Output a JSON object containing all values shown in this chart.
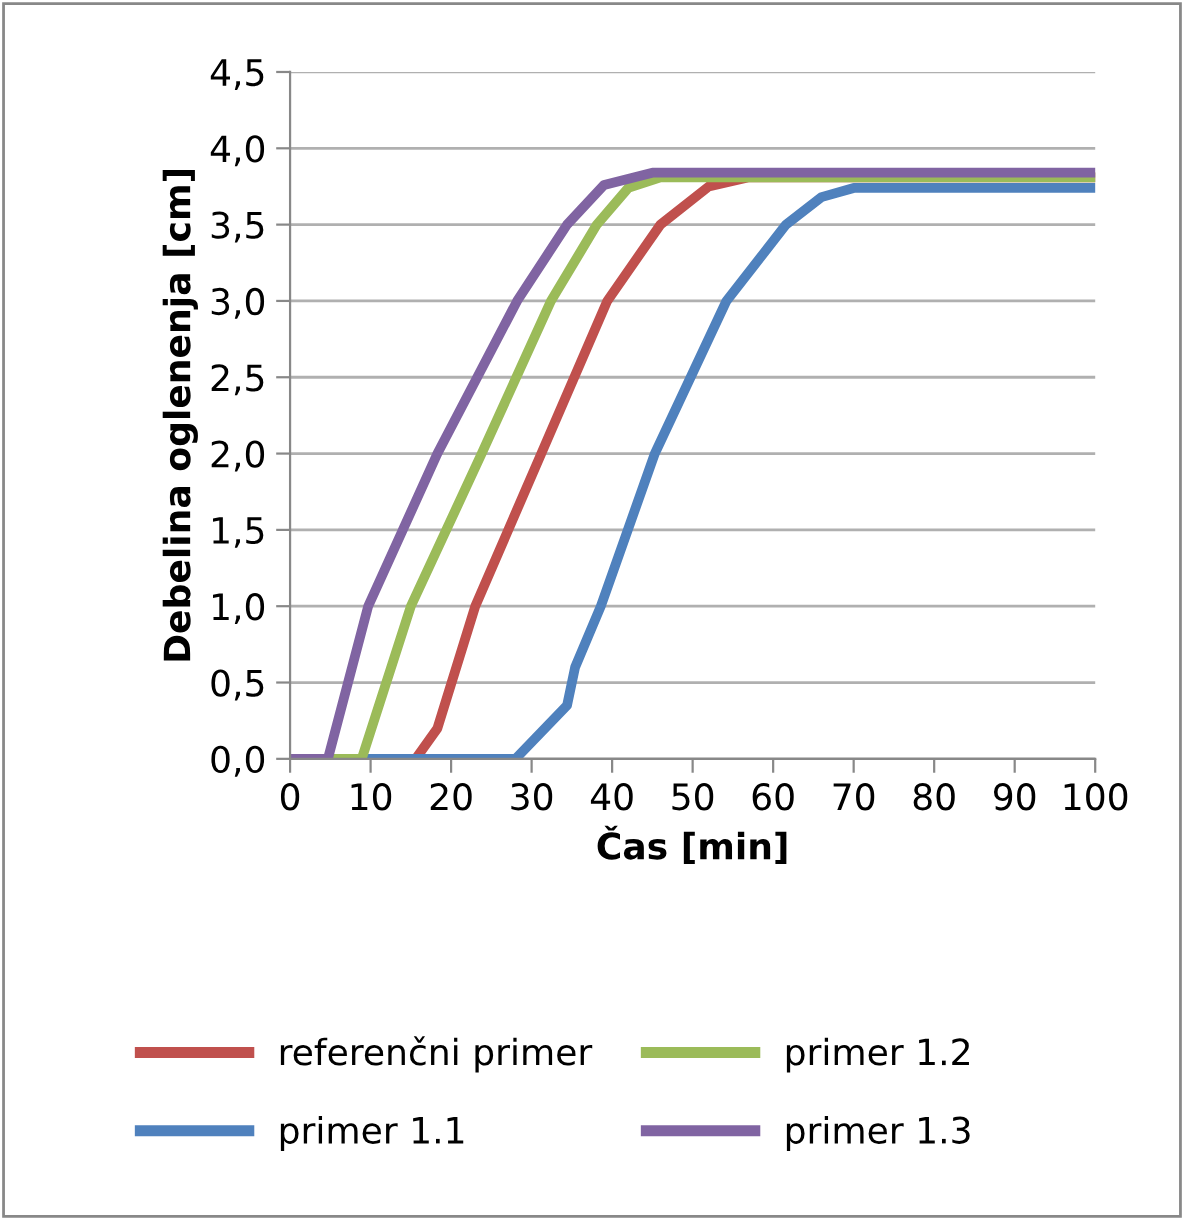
{
  "chart_data": {
    "type": "line",
    "xlabel": "Čas [min]",
    "ylabel": "Debelina oglenenja [cm]",
    "xlim": [
      0,
      100
    ],
    "xticks": [
      0,
      10,
      20,
      30,
      40,
      50,
      60,
      70,
      80,
      90,
      100
    ],
    "ylim": [
      0,
      4.5
    ],
    "yticks": [
      {
        "value": 0,
        "label": "0,0"
      },
      {
        "value": 0.5,
        "label": "0,5"
      },
      {
        "value": 1,
        "label": "1,0"
      },
      {
        "value": 1.5,
        "label": "1,5"
      },
      {
        "value": 2,
        "label": "2,0"
      },
      {
        "value": 2.5,
        "label": "2,5"
      },
      {
        "value": 3,
        "label": "3,0"
      },
      {
        "value": 3.5,
        "label": "3,5"
      },
      {
        "value": 4,
        "label": "4,0"
      },
      {
        "value": 4.5,
        "label": "4,5"
      }
    ],
    "grid": "y",
    "legend": "bottom",
    "marker": "none",
    "line_style": "solid",
    "series": [
      {
        "name": "referenčni primer",
        "color": "#c0504d",
        "x": [
          0,
          15.6,
          18.3,
          23,
          31.2,
          39.4,
          46,
          52,
          57,
          100
        ],
        "values": [
          0,
          0,
          0.2,
          1,
          2,
          3,
          3.5,
          3.75,
          3.81,
          3.81
        ]
      },
      {
        "name": "primer 1.1",
        "color": "#4f81bd",
        "x": [
          0,
          28,
          34.4,
          35.4,
          38.6,
          45.3,
          54.2,
          61.6,
          66,
          70,
          100
        ],
        "values": [
          0,
          0,
          0.35,
          0.6,
          1,
          2,
          3,
          3.5,
          3.68,
          3.74,
          3.74
        ]
      },
      {
        "name": "primer 1.2",
        "color": "#9bbb59",
        "x": [
          0,
          8.9,
          15,
          23.8,
          32.4,
          38.1,
          42,
          46,
          100
        ],
        "values": [
          0,
          0,
          1,
          2,
          3,
          3.5,
          3.74,
          3.81,
          3.81
        ]
      },
      {
        "name": "primer 1.3",
        "color": "#8064a2",
        "x": [
          0,
          4.7,
          9.7,
          18.3,
          28.2,
          34.4,
          39,
          45,
          100
        ],
        "values": [
          0,
          0,
          1,
          2,
          3,
          3.5,
          3.76,
          3.84,
          3.84
        ]
      }
    ]
  }
}
